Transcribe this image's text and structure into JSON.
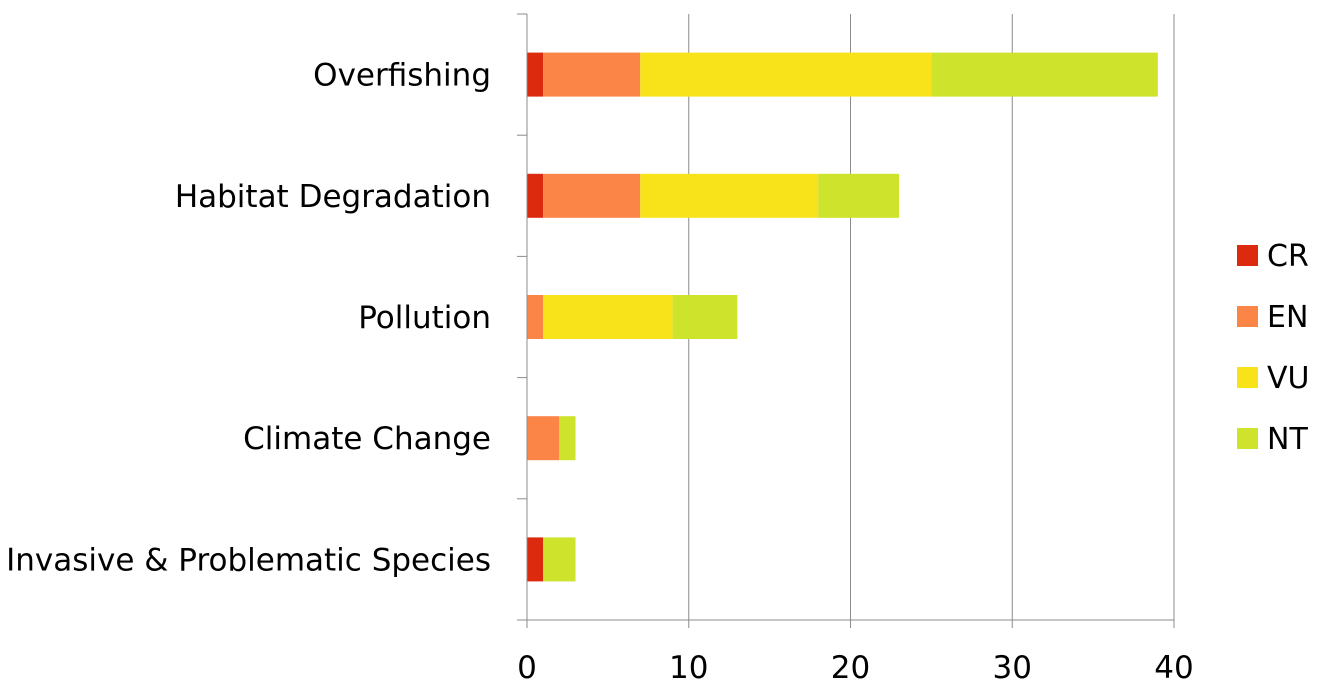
{
  "chart_data": {
    "type": "bar",
    "orientation": "horizontal",
    "stacked": true,
    "categories": [
      "Overfishing",
      "Habitat Degradation",
      "Pollution",
      "Climate Change",
      "Invasive & Problematic Species"
    ],
    "series": [
      {
        "name": "CR",
        "color": "#dc2a0e",
        "values": [
          1,
          1,
          0,
          0,
          1
        ]
      },
      {
        "name": "EN",
        "color": "#fb8447",
        "values": [
          6,
          6,
          1,
          2,
          0
        ]
      },
      {
        "name": "VU",
        "color": "#f8e31b",
        "values": [
          18,
          11,
          8,
          0,
          0
        ]
      },
      {
        "name": "NT",
        "color": "#cde32c",
        "values": [
          14,
          5,
          4,
          1,
          2
        ]
      }
    ],
    "xlim": [
      0,
      40
    ],
    "xticks": [
      "0",
      "10",
      "20",
      "30",
      "40"
    ],
    "grid": "vertical",
    "legend": "right",
    "title": "",
    "xlabel": "",
    "ylabel": ""
  }
}
